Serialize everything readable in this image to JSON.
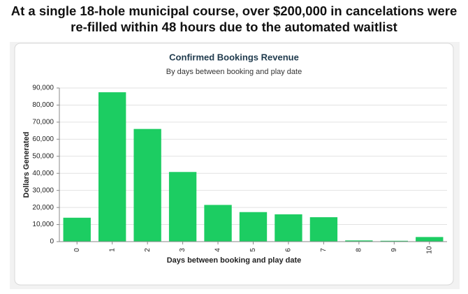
{
  "headline": [
    "At a single 18-hole municipal course, over $200,000 in cancelations were",
    "re-filled within 48 hours due to the automated waitlist"
  ],
  "chart_data": {
    "type": "bar",
    "title": "Confirmed Bookings Revenue",
    "subtitle": "By days between booking and play date",
    "x_label": "Days between booking and play date",
    "y_label": "Dollars Generated",
    "categories": [
      "0",
      "1",
      "2",
      "3",
      "4",
      "5",
      "6",
      "7",
      "8",
      "9",
      "10"
    ],
    "values": [
      14000,
      87500,
      66000,
      40800,
      21500,
      17300,
      16000,
      14300,
      700,
      500,
      2700
    ],
    "color": "#1ccd62",
    "ylim": [
      0,
      90000
    ],
    "yticks": [
      0,
      {
        "value": 10000,
        "label": "10,000"
      },
      {
        "value": 20000,
        "label": "20,000"
      },
      {
        "value": 30000,
        "label": "30,000"
      },
      {
        "value": 40000,
        "label": "40,000"
      },
      {
        "value": 50000,
        "label": "50,000"
      },
      {
        "value": 60000,
        "label": "60,000"
      },
      {
        "value": 70000,
        "label": "70,000"
      },
      {
        "value": 80000,
        "label": "80,000"
      },
      {
        "value": 90000,
        "label": "90,000"
      }
    ],
    "grid": true
  }
}
